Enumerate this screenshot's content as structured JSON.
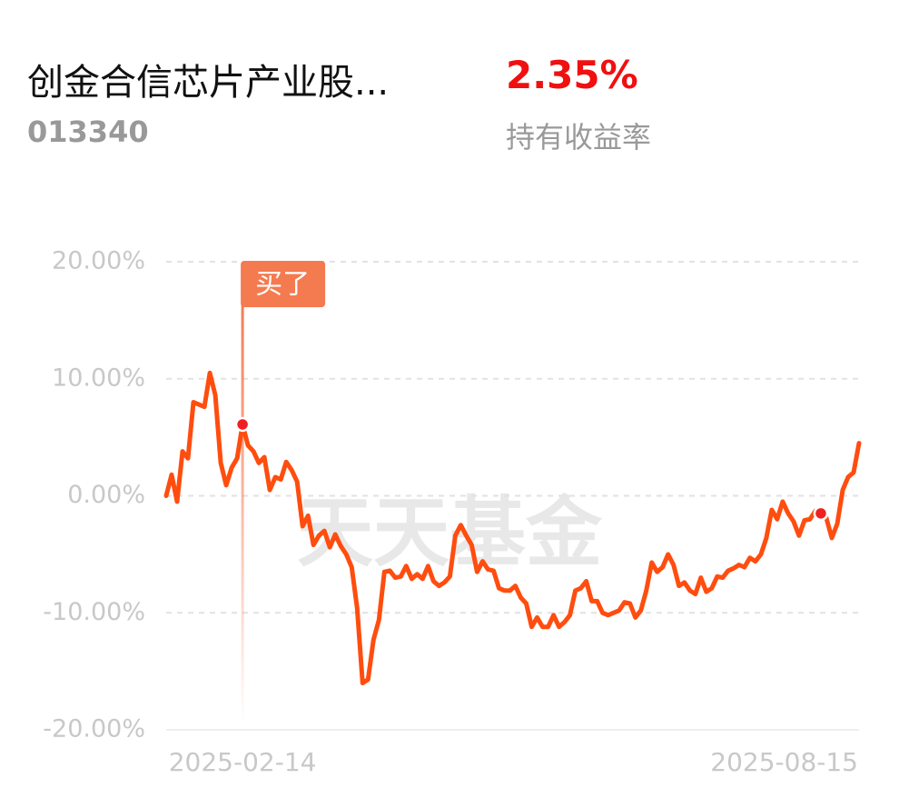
{
  "header": {
    "title": "创金合信芯片产业股...",
    "code": "013340",
    "return": "2.35%",
    "return_label": "持有收益率"
  },
  "chart_data": {
    "type": "line",
    "color": "#ff4d0f",
    "watermark": "天天基金",
    "ylim": [
      -20,
      20
    ],
    "yticks": [
      {
        "value": 20,
        "label": "20.00%"
      },
      {
        "value": 10,
        "label": "10.00%"
      },
      {
        "value": 0,
        "label": "0.00%"
      },
      {
        "value": -10,
        "label": "-10.00%"
      },
      {
        "value": -20,
        "label": "-20.00%"
      }
    ],
    "grid": true,
    "categories": [
      null,
      null,
      null,
      null,
      null,
      null,
      null,
      null,
      null,
      null,
      null,
      null,
      null,
      null,
      "2025-02-14",
      null,
      null,
      null,
      null,
      null,
      null,
      null,
      null,
      null,
      null,
      null,
      null,
      null,
      null,
      null,
      null,
      null,
      null,
      null,
      null,
      null,
      null,
      null,
      null,
      null,
      null,
      null,
      null,
      null,
      null,
      null,
      null,
      null,
      null,
      null,
      null,
      null,
      null,
      null,
      null,
      null,
      null,
      null,
      null,
      null,
      null,
      null,
      null,
      null,
      null,
      null,
      null,
      null,
      null,
      null,
      null,
      null,
      null,
      null,
      null,
      null,
      null,
      null,
      null,
      null,
      null,
      null,
      null,
      null,
      null,
      null,
      null,
      null,
      null,
      null,
      null,
      null,
      null,
      null,
      null,
      null,
      null,
      null,
      null,
      null,
      null,
      null,
      null,
      null,
      null,
      null,
      null,
      null,
      null,
      null,
      null,
      null,
      null,
      null,
      null,
      null,
      null,
      null,
      null,
      null,
      null,
      null,
      null,
      null,
      null,
      null,
      null,
      "2025-08-15"
    ],
    "values": [
      0,
      1.8,
      -0.5,
      3.8,
      3.2,
      8.0,
      7.8,
      7.6,
      10.5,
      8.6,
      2.8,
      0.9,
      2.4,
      3.2,
      6.1,
      4.3,
      3.8,
      2.8,
      3.3,
      0.5,
      1.6,
      1.4,
      2.9,
      2.2,
      1.2,
      -2.6,
      -1.7,
      -4.2,
      -3.4,
      -3.0,
      -4.4,
      -3.3,
      -4.3,
      -5.0,
      -6.1,
      -9.6,
      -16.0,
      -15.7,
      -12.3,
      -10.6,
      -6.5,
      -6.4,
      -7.0,
      -6.9,
      -6.0,
      -7.1,
      -6.7,
      -7.1,
      -6.0,
      -7.3,
      -7.7,
      -7.4,
      -6.9,
      -3.4,
      -2.5,
      -3.4,
      -4.2,
      -6.5,
      -5.6,
      -6.3,
      -6.4,
      -7.9,
      -8.1,
      -8.1,
      -7.7,
      -8.7,
      -9.2,
      -11.2,
      -10.4,
      -11.2,
      -11.2,
      -10.2,
      -11.2,
      -10.8,
      -10.2,
      -8.1,
      -7.9,
      -7.3,
      -9.0,
      -9.0,
      -10.0,
      -10.2,
      -10.0,
      -9.8,
      -9.1,
      -9.2,
      -10.4,
      -9.8,
      -8.1,
      -5.7,
      -6.5,
      -6.1,
      -5.0,
      -5.9,
      -7.7,
      -7.4,
      -8.1,
      -8.4,
      -7.0,
      -8.2,
      -7.9,
      -6.9,
      -7.0,
      -6.4,
      -6.2,
      -5.9,
      -6.1,
      -5.3,
      -5.6,
      -5.0,
      -3.6,
      -1.2,
      -2.0,
      -0.5,
      -1.5,
      -2.2,
      -3.4,
      -2.1,
      -2.0,
      -1.3,
      -1.5,
      -1.9,
      -3.6,
      -2.4,
      0.5,
      1.6,
      2.0,
      4.5
    ],
    "buy_point": {
      "label": "买了",
      "index": 14
    },
    "holding_point_index": 120
  }
}
